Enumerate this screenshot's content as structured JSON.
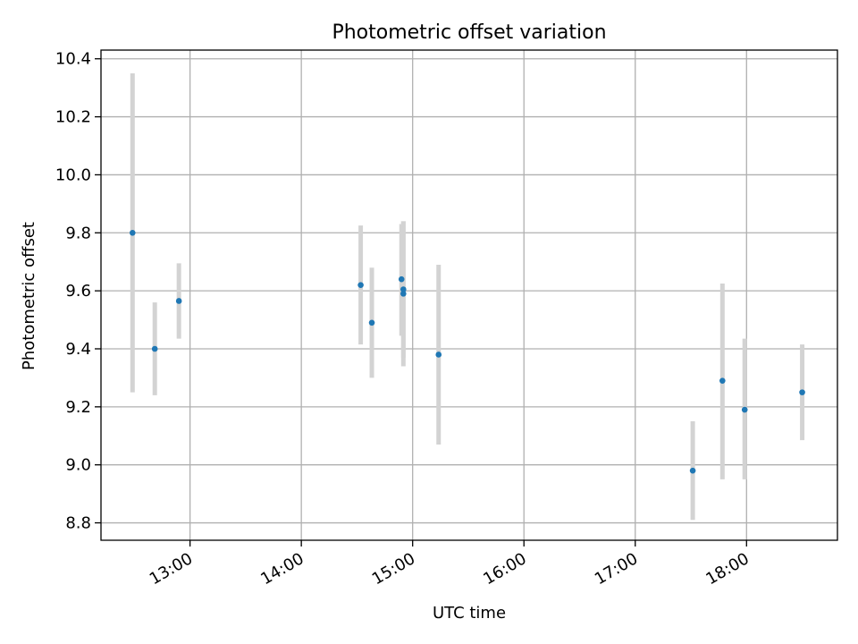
{
  "chart_data": {
    "type": "scatter",
    "title": "Photometric offset variation",
    "xlabel": "UTC time",
    "ylabel": "Photometric offset",
    "x_ticks": [
      "13:00",
      "14:00",
      "15:00",
      "16:00",
      "17:00",
      "18:00"
    ],
    "y_ticks": [
      "8.8",
      "9.0",
      "9.2",
      "9.4",
      "9.6",
      "9.8",
      "10.0",
      "10.2",
      "10.4"
    ],
    "xlim": [
      "12:12",
      "18:49"
    ],
    "ylim": [
      8.74,
      10.43
    ],
    "grid": true,
    "colors": {
      "points": "#1f77b4",
      "errorbars": "#d3d3d3",
      "grid": "#b0b0b0"
    },
    "series": [
      {
        "points": [
          {
            "x": "12:29",
            "y": 9.8,
            "ymin": 9.25,
            "ymax": 10.35
          },
          {
            "x": "12:41",
            "y": 9.4,
            "ymin": 9.24,
            "ymax": 9.56
          },
          {
            "x": "12:54",
            "y": 9.565,
            "ymin": 9.435,
            "ymax": 9.695
          },
          {
            "x": "14:32",
            "y": 9.62,
            "ymin": 9.415,
            "ymax": 9.825
          },
          {
            "x": "14:38",
            "y": 9.49,
            "ymin": 9.3,
            "ymax": 9.68
          },
          {
            "x": "14:54",
            "y": 9.64,
            "ymin": 9.445,
            "ymax": 9.83
          },
          {
            "x": "14:55",
            "y": 9.605,
            "ymin": 9.37,
            "ymax": 9.84
          },
          {
            "x": "14:55",
            "y": 9.59,
            "ymin": 9.34,
            "ymax": 9.84
          },
          {
            "x": "15:14",
            "y": 9.38,
            "ymin": 9.07,
            "ymax": 9.69
          },
          {
            "x": "17:31",
            "y": 8.98,
            "ymin": 8.81,
            "ymax": 9.15
          },
          {
            "x": "17:47",
            "y": 9.29,
            "ymin": 8.95,
            "ymax": 9.625
          },
          {
            "x": "17:59",
            "y": 9.19,
            "ymin": 8.95,
            "ymax": 9.435
          },
          {
            "x": "18:30",
            "y": 9.25,
            "ymin": 9.085,
            "ymax": 9.415
          }
        ]
      }
    ]
  }
}
